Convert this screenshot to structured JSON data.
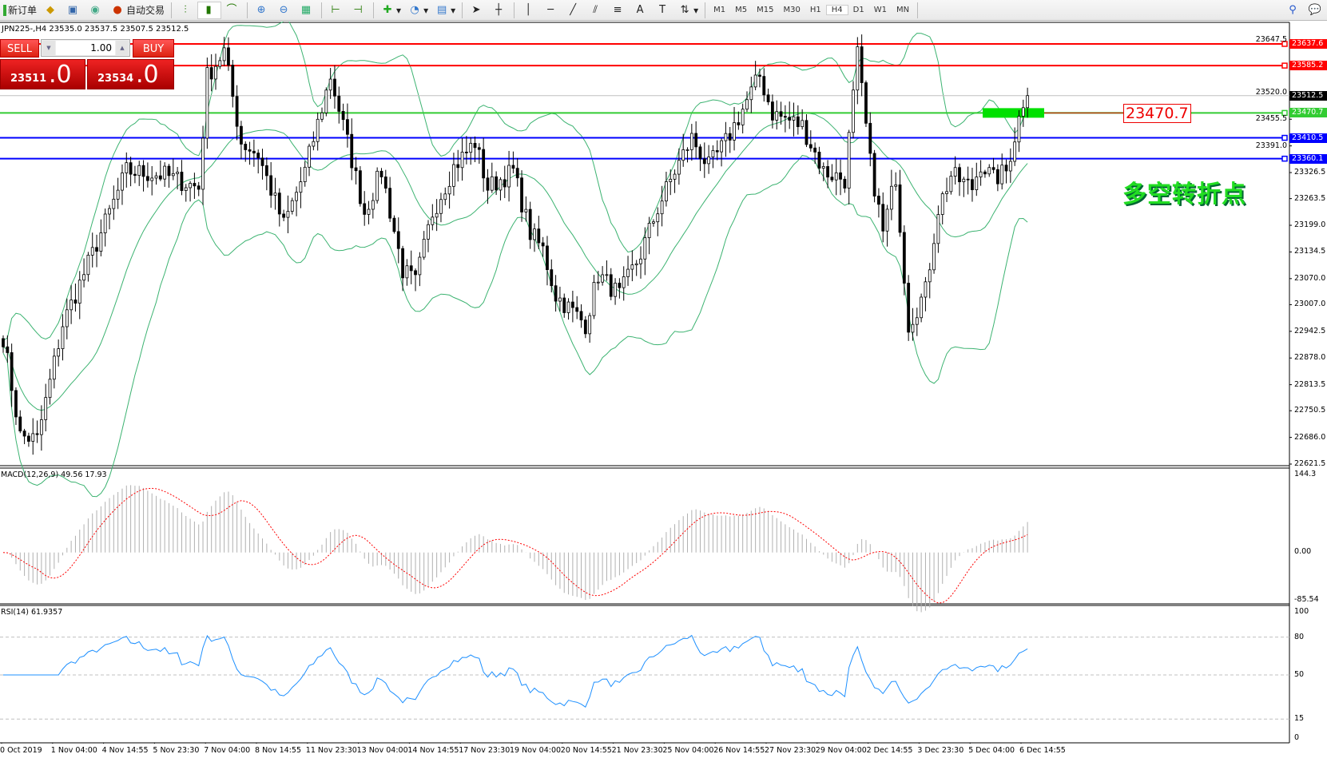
{
  "toolbar": {
    "new_order": "新订单",
    "autotrade": "自动交易",
    "timeframes": [
      "M1",
      "M5",
      "M15",
      "M30",
      "H1",
      "H4",
      "D1",
      "W1",
      "MN"
    ],
    "active_timeframe": "H4"
  },
  "chart": {
    "header": "JPN225-,H4  23535.0 23537.5 23507.5 23512.5",
    "trade_panel": {
      "sell_label": "SELL",
      "buy_label": "BUY",
      "lots": "1.00",
      "sell_price_small": "23511",
      "sell_price_big": ".0",
      "buy_price_small": "23534",
      "buy_price_big": ".0"
    },
    "price_axis_ticks": [
      "23647.5",
      "23520.0",
      "23455.5",
      "23391.0",
      "23326.5",
      "23263.5",
      "23199.0",
      "23134.5",
      "23070.0",
      "23007.0",
      "22942.5",
      "22878.0",
      "22813.5",
      "22750.5",
      "22686.0",
      "22621.5"
    ],
    "levels": [
      {
        "price": 23637.6,
        "label": "23637.6",
        "color": "#ff0000"
      },
      {
        "price": 23585.2,
        "label": "23585.2",
        "color": "#ff0000"
      },
      {
        "price": 23470.7,
        "label": "23470.7",
        "color": "#33cc33"
      },
      {
        "price": 23410.5,
        "label": "23410.5",
        "color": "#0000ff"
      },
      {
        "price": 23360.1,
        "label": "23360.1",
        "color": "#0000ff"
      }
    ],
    "bid": {
      "price": 23512.5,
      "label": "23512.5"
    },
    "level_callout": "23470.7",
    "annotation": "多空转折点",
    "macd_label": "MACD(12,26,9) 49.56 17.93",
    "macd_axis": [
      "144.3",
      "0.00",
      "-85.54"
    ],
    "rsi_label": "RSI(14) 61.9357",
    "rsi_axis": [
      "100",
      "80",
      "50",
      "15",
      "0"
    ],
    "time_labels": [
      "0 Oct 2019",
      "1 Nov 04:00",
      "4 Nov 14:55",
      "5 Nov 23:30",
      "7 Nov 04:00",
      "8 Nov 14:55",
      "11 Nov 23:30",
      "13 Nov 04:00",
      "14 Nov 14:55",
      "17 Nov 23:30",
      "19 Nov 04:00",
      "20 Nov 14:55",
      "21 Nov 23:30",
      "25 Nov 04:00",
      "26 Nov 14:55",
      "27 Nov 23:30",
      "29 Nov 04:00",
      "2 Dec 14:55",
      "3 Dec 23:30",
      "5 Dec 04:00",
      "6 Dec 14:55"
    ]
  },
  "chart_data": {
    "type": "candlestick",
    "symbol": "JPN225-",
    "timeframe": "H4",
    "ylim": [
      22621.5,
      23647.5
    ],
    "close_path": [
      [
        0,
        22930
      ],
      [
        4,
        22690
      ],
      [
        8,
        22680
      ],
      [
        14,
        22960
      ],
      [
        21,
        23130
      ],
      [
        29,
        23330
      ],
      [
        38,
        23320
      ],
      [
        46,
        23290
      ],
      [
        48,
        23560
      ],
      [
        52,
        23620
      ],
      [
        56,
        23400
      ],
      [
        60,
        23370
      ],
      [
        66,
        23200
      ],
      [
        71,
        23330
      ],
      [
        77,
        23560
      ],
      [
        81,
        23400
      ],
      [
        85,
        23230
      ],
      [
        89,
        23330
      ],
      [
        94,
        23090
      ],
      [
        97,
        23060
      ],
      [
        101,
        23230
      ],
      [
        106,
        23340
      ],
      [
        111,
        23400
      ],
      [
        114,
        23290
      ],
      [
        120,
        23330
      ],
      [
        124,
        23180
      ],
      [
        127,
        23140
      ],
      [
        130,
        23030
      ],
      [
        137,
        22960
      ],
      [
        140,
        23080
      ],
      [
        145,
        23030
      ],
      [
        150,
        23130
      ],
      [
        154,
        23240
      ],
      [
        158,
        23330
      ],
      [
        162,
        23410
      ],
      [
        166,
        23340
      ],
      [
        170,
        23400
      ],
      [
        176,
        23520
      ],
      [
        178,
        23560
      ],
      [
        181,
        23470
      ],
      [
        188,
        23440
      ],
      [
        193,
        23330
      ],
      [
        198,
        23310
      ],
      [
        201,
        23610
      ],
      [
        204,
        23350
      ],
      [
        207,
        23180
      ],
      [
        210,
        23320
      ],
      [
        213,
        22960
      ],
      [
        217,
        23040
      ],
      [
        220,
        23240
      ],
      [
        223,
        23320
      ],
      [
        228,
        23290
      ],
      [
        230,
        23350
      ],
      [
        233,
        23310
      ],
      [
        236,
        23330
      ],
      [
        240,
        23500
      ],
      [
        241,
        23512.5
      ]
    ]
  }
}
